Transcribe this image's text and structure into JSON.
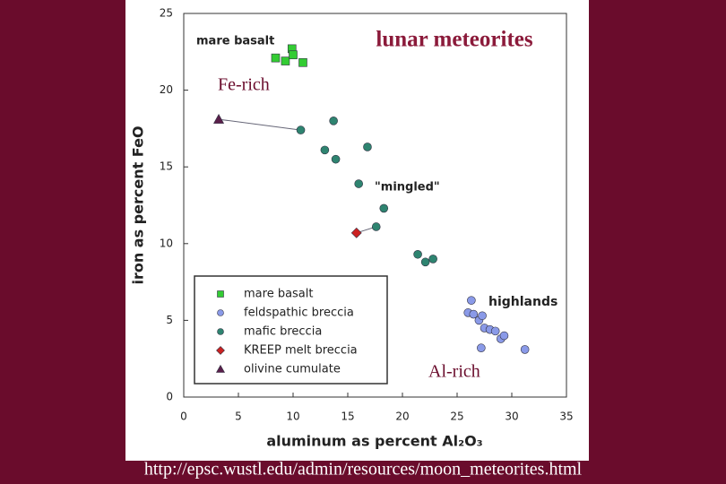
{
  "chart_data": {
    "type": "scatter",
    "title": "lunar meteorites",
    "x_label": "aluminum as percent Al₂O₃",
    "y_label": "iron as percent FeO",
    "xlim": [
      0,
      35
    ],
    "xticks": [
      0,
      5,
      10,
      15,
      20,
      25,
      30,
      35
    ],
    "ylim": [
      0,
      25
    ],
    "yticks": [
      0,
      5,
      10,
      15,
      20,
      25
    ],
    "legend": "lower-left",
    "annotations": [
      "mare basalt",
      "Fe-rich",
      "\"mingled\"",
      "highlands",
      "Al-rich"
    ],
    "source": "http://epsc.wustl.edu/admin/resources/moon_meteorites.html",
    "series": [
      {
        "name": "mare basalt",
        "color": "#33cc33",
        "marker": "square",
        "x": [
          8.4,
          9.3,
          9.9,
          10.0,
          10.9
        ],
        "values": [
          22.1,
          21.9,
          22.7,
          22.3,
          21.8
        ]
      },
      {
        "name": "feldspathic breccia",
        "color": "#8a9ae8",
        "marker": "circle",
        "x": [
          26.3,
          26.0,
          26.5,
          27.0,
          27.3,
          27.5,
          28.0,
          28.5,
          29.0,
          29.3,
          27.2,
          31.2
        ],
        "values": [
          6.3,
          5.5,
          5.4,
          5.0,
          5.3,
          4.5,
          4.4,
          4.3,
          3.8,
          4.0,
          3.2,
          3.1
        ]
      },
      {
        "name": "mafic breccia",
        "color": "#2e8470",
        "marker": "circle",
        "x": [
          10.7,
          13.7,
          16.8,
          12.9,
          13.9,
          16.0,
          18.3,
          17.6,
          21.4,
          22.1,
          22.8
        ],
        "values": [
          17.4,
          18.0,
          16.3,
          16.1,
          15.5,
          13.9,
          12.3,
          11.1,
          9.3,
          8.8,
          9.0
        ]
      },
      {
        "name": "KREEP melt breccia",
        "color": "#cc2222",
        "marker": "diamond",
        "x": [
          15.8
        ],
        "values": [
          10.7
        ]
      },
      {
        "name": "olivine cumulate",
        "color": "#5a1f4a",
        "marker": "triangle",
        "x": [
          3.2
        ],
        "values": [
          18.1
        ]
      }
    ]
  }
}
